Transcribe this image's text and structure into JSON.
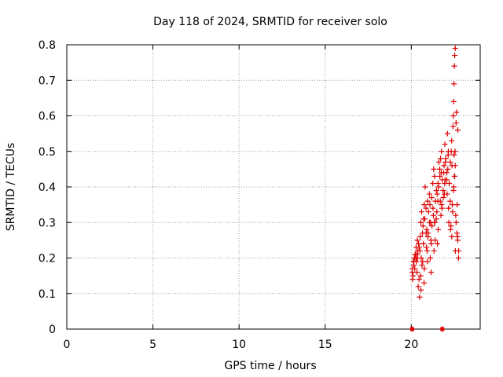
{
  "chart_data": {
    "type": "scatter",
    "title": "Day 118 of 2024, SRMTID for receiver solo",
    "xlabel": "GPS time / hours",
    "ylabel": "SRMTID / TECUs",
    "xlim": [
      0,
      24
    ],
    "ylim": [
      0,
      0.8
    ],
    "xticks": [
      0,
      5,
      10,
      15,
      20
    ],
    "xtick_labels": [
      "0",
      "5",
      "10",
      "15",
      "20"
    ],
    "yticks": [
      0,
      0.1,
      0.2,
      0.3,
      0.4,
      0.5,
      0.6,
      0.7,
      0.8
    ],
    "ytick_labels": [
      "0",
      "0.1",
      "0.2",
      "0.3",
      "0.4",
      "0.5",
      "0.6",
      "0.7",
      "0.8"
    ],
    "grid": true,
    "colors": {
      "series": "#dd0000",
      "grid": "#a0a0a0",
      "axis": "#000000"
    },
    "marker_series": {
      "name": "SRMTID",
      "marker": "plus",
      "x": [
        20.05,
        20.1,
        20.12,
        20.18,
        20.2,
        20.25,
        20.28,
        20.3,
        20.35,
        20.38,
        20.4,
        20.45,
        20.48,
        20.5,
        20.55,
        20.6,
        20.62,
        20.65,
        20.7,
        20.72,
        20.75,
        20.8,
        20.85,
        20.9,
        20.92,
        20.95,
        21.0,
        21.05,
        21.1,
        21.15,
        21.2,
        21.25,
        21.3,
        21.35,
        21.4,
        21.45,
        21.5,
        21.55,
        21.6,
        21.65,
        21.7,
        21.75,
        21.8,
        21.85,
        21.9,
        21.95,
        22.0,
        22.05,
        22.1,
        22.15,
        22.2,
        22.25,
        22.3,
        22.35,
        22.4,
        22.45,
        22.5,
        22.55,
        22.6,
        22.65,
        22.7,
        22.75,
        20.08,
        20.15,
        20.22,
        20.33,
        20.42,
        20.52,
        20.58,
        20.68,
        20.78,
        20.88,
        20.98,
        21.08,
        21.18,
        21.28,
        21.38,
        21.48,
        21.58,
        21.68,
        21.78,
        21.88,
        21.98,
        22.08,
        22.18,
        22.28,
        22.38,
        22.48,
        22.58,
        22.68,
        20.06,
        20.26,
        20.46,
        20.66,
        20.86,
        21.06,
        21.26,
        21.46,
        21.66,
        21.86,
        22.06,
        22.26,
        22.46,
        22.66,
        22.42,
        22.44,
        22.46,
        22.48,
        22.5,
        22.52,
        22.55,
        22.6,
        22.62,
        22.7,
        21.12,
        21.32,
        21.52,
        21.72,
        21.92,
        22.12,
        22.32,
        22.52,
        20.36,
        20.56,
        20.76,
        20.96,
        21.16,
        21.36,
        21.56,
        21.76,
        21.96,
        22.16,
        22.36,
        22.56,
        20.14,
        20.34,
        20.54,
        20.74,
        20.94,
        21.14,
        21.34,
        21.54,
        21.74,
        21.94,
        22.14,
        22.34,
        22.54,
        22.74
      ],
      "y": [
        0.17,
        0.15,
        0.19,
        0.2,
        0.17,
        0.21,
        0.23,
        0.19,
        0.25,
        0.22,
        0.12,
        0.14,
        0.09,
        0.22,
        0.3,
        0.33,
        0.18,
        0.27,
        0.24,
        0.31,
        0.35,
        0.4,
        0.34,
        0.28,
        0.22,
        0.36,
        0.33,
        0.38,
        0.2,
        0.16,
        0.29,
        0.41,
        0.45,
        0.43,
        0.36,
        0.31,
        0.38,
        0.41,
        0.47,
        0.45,
        0.48,
        0.5,
        0.42,
        0.39,
        0.46,
        0.52,
        0.48,
        0.44,
        0.55,
        0.5,
        0.41,
        0.36,
        0.29,
        0.26,
        0.33,
        0.39,
        0.43,
        0.46,
        0.3,
        0.27,
        0.25,
        0.22,
        0.14,
        0.18,
        0.21,
        0.16,
        0.24,
        0.26,
        0.2,
        0.29,
        0.31,
        0.23,
        0.27,
        0.35,
        0.37,
        0.32,
        0.25,
        0.33,
        0.4,
        0.36,
        0.34,
        0.44,
        0.47,
        0.38,
        0.3,
        0.28,
        0.35,
        0.49,
        0.32,
        0.26,
        0.16,
        0.2,
        0.23,
        0.19,
        0.27,
        0.3,
        0.34,
        0.39,
        0.43,
        0.37,
        0.42,
        0.47,
        0.4,
        0.35,
        0.57,
        0.6,
        0.64,
        0.69,
        0.74,
        0.77,
        0.79,
        0.58,
        0.61,
        0.56,
        0.3,
        0.22,
        0.24,
        0.32,
        0.38,
        0.45,
        0.5,
        0.43,
        0.2,
        0.11,
        0.17,
        0.26,
        0.24,
        0.3,
        0.28,
        0.35,
        0.42,
        0.34,
        0.46,
        0.22,
        0.19,
        0.21,
        0.15,
        0.13,
        0.19,
        0.25,
        0.3,
        0.36,
        0.44,
        0.41,
        0.49,
        0.53,
        0.5,
        0.2
      ],
      "extra_points": [
        [
          20.05,
          0.0
        ],
        [
          21.8,
          0.0
        ]
      ]
    }
  }
}
